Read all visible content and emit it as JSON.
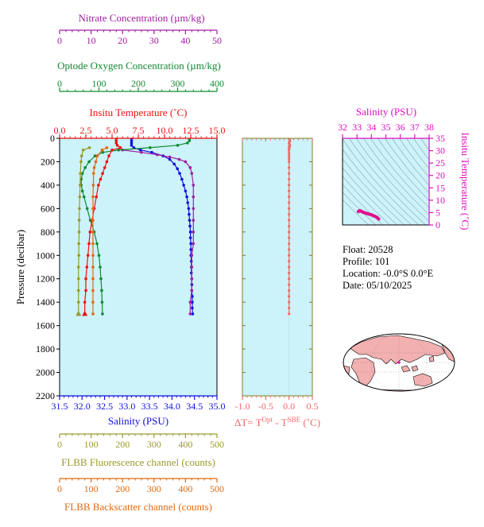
{
  "colors": {
    "nitrate": "#a020a0",
    "oxygen": "#108a30",
    "temperature": "#ee1010",
    "salinity": "#1010dd",
    "fluorescence": "#9a9a2a",
    "backscatter": "#e06a10",
    "dt": "#f06a6a",
    "ts_axis": "#e010c0",
    "plot_bg": "#ccf2fa",
    "map_land": "#f2b0b0"
  },
  "info": {
    "float": "Float:  20528",
    "profile": "Profile:  101",
    "location": "Location:  -0.0°S   0.0°E",
    "date": "Date:  05/10/2025"
  },
  "chart_data": [
    {
      "type": "line",
      "name": "main-profile",
      "ylabel": "Pressure (decibar)",
      "ylim": [
        2200,
        0
      ],
      "yticks": [
        0,
        200,
        400,
        600,
        800,
        1000,
        1200,
        1400,
        1600,
        1800,
        2000,
        2200
      ],
      "axes": {
        "nitrate": {
          "label": "Nitrate Concentration (µm/kg)",
          "range": [
            0,
            50
          ],
          "ticks": [
            0,
            10,
            20,
            30,
            40,
            50
          ]
        },
        "oxygen": {
          "label": "Optode Oxygen Concentration (µm/kg)",
          "range": [
            0,
            400
          ],
          "ticks": [
            0,
            100,
            200,
            300,
            400
          ]
        },
        "temperature": {
          "label": "Insitu Temperature (˚C)",
          "range": [
            0,
            15
          ],
          "ticks": [
            "0.0",
            "2.5",
            "5.0",
            "7.5",
            "10.0",
            "12.5",
            "15.0"
          ]
        },
        "salinity": {
          "label": "Salinity (PSU)",
          "range": [
            31.5,
            35
          ],
          "ticks": [
            "31.5",
            "32.0",
            "32.5",
            "33.0",
            "33.5",
            "34.0",
            "34.5",
            "35.0"
          ]
        },
        "fluorescence": {
          "label": "FLBB Fluorescence channel (counts)",
          "range": [
            0,
            500
          ],
          "ticks": [
            0,
            100,
            200,
            300,
            400,
            500
          ]
        },
        "backscatter": {
          "label": "FLBB Backscatter channel (counts)",
          "range": [
            0,
            500
          ],
          "ticks": [
            0,
            100,
            200,
            300,
            400,
            500
          ]
        }
      },
      "series": [
        {
          "key": "salinity",
          "pressure": [
            0,
            20,
            40,
            60,
            80,
            100,
            120,
            150,
            180,
            220,
            260,
            300,
            350,
            400,
            450,
            500,
            550,
            600,
            650,
            700,
            750,
            800,
            850,
            900,
            950,
            1000,
            1050,
            1100,
            1150,
            1200,
            1250,
            1300,
            1350,
            1400,
            1450,
            1500
          ],
          "values": [
            33.1,
            33.1,
            33.1,
            33.1,
            33.15,
            33.3,
            33.55,
            33.8,
            33.95,
            34.05,
            34.12,
            34.17,
            34.22,
            34.26,
            34.3,
            34.33,
            34.35,
            34.37,
            34.38,
            34.39,
            34.4,
            34.41,
            34.41,
            34.42,
            34.42,
            34.42,
            34.43,
            34.43,
            34.43,
            34.44,
            34.44,
            34.44,
            34.45,
            34.45,
            34.45,
            34.46
          ]
        },
        {
          "key": "nitrate",
          "pressure": [
            100,
            120,
            140,
            160,
            180,
            200,
            250,
            300,
            400,
            500,
            600,
            700,
            800,
            900,
            1000,
            1100,
            1200,
            1300,
            1400,
            1500
          ],
          "values": [
            20,
            26,
            31,
            35,
            38,
            40,
            41.5,
            42,
            42.5,
            42.5,
            42.5,
            42.5,
            42.5,
            42.5,
            42,
            42,
            42,
            42,
            41.5,
            41.5
          ]
        },
        {
          "key": "oxygen",
          "pressure": [
            0,
            20,
            40,
            60,
            80,
            100,
            120,
            150,
            200,
            250,
            300,
            350,
            400,
            450,
            500,
            600,
            700,
            800,
            900,
            1000,
            1100,
            1200,
            1300,
            1400,
            1500
          ],
          "values": [
            330,
            330,
            325,
            300,
            230,
            150,
            110,
            90,
            75,
            65,
            58,
            55,
            55,
            58,
            62,
            70,
            78,
            88,
            95,
            100,
            103,
            105,
            107,
            108,
            109
          ]
        },
        {
          "key": "temperature",
          "pressure": [
            0,
            20,
            40,
            60,
            80,
            100,
            150,
            200,
            250,
            300,
            350,
            400,
            500,
            600,
            700,
            800,
            900,
            1000,
            1100,
            1200,
            1300,
            1400,
            1500
          ],
          "values": [
            5.4,
            5.4,
            5.4,
            5.5,
            5.8,
            5.0,
            4.7,
            4.5,
            4.3,
            4.1,
            3.9,
            3.7,
            3.5,
            3.3,
            3.1,
            2.9,
            2.8,
            2.7,
            2.6,
            2.5,
            2.5,
            2.4,
            2.4
          ]
        },
        {
          "key": "fluorescence",
          "pressure": [
            80,
            100,
            150,
            200,
            300,
            400,
            500,
            600,
            700,
            800,
            900,
            1000,
            1100,
            1200,
            1300,
            1400,
            1500
          ],
          "values": [
            95,
            75,
            70,
            68,
            66,
            65,
            64,
            63,
            62,
            62,
            61,
            61,
            60,
            60,
            60,
            60,
            60
          ]
        },
        {
          "key": "backscatter",
          "pressure": [
            80,
            100,
            150,
            200,
            250,
            300,
            400,
            500,
            600,
            700,
            800,
            900,
            1000,
            1100,
            1200,
            1300,
            1400,
            1500
          ],
          "values": [
            150,
            135,
            120,
            115,
            110,
            108,
            107,
            106,
            106,
            106,
            106,
            106,
            106,
            106,
            106,
            106,
            106,
            106
          ]
        }
      ]
    },
    {
      "type": "line",
      "name": "delta-t-profile",
      "xlabel": "ΔT= TOpt - TSBE (˚C)",
      "xlim": [
        -1.0,
        0.5
      ],
      "xticks": [
        "-1.0",
        "-0.5",
        "0.0",
        "0.5"
      ],
      "ylim": [
        2200,
        0
      ],
      "pressure": [
        0,
        10,
        20,
        30,
        40,
        50,
        60,
        70,
        80,
        90,
        100,
        120,
        140,
        160,
        180,
        200,
        250,
        300,
        350,
        400,
        450,
        500,
        550,
        600,
        650,
        700,
        750,
        800,
        850,
        900,
        950,
        1000,
        1050,
        1100,
        1150,
        1200,
        1250,
        1300,
        1350,
        1400,
        1450,
        1500
      ],
      "values": [
        0,
        0.01,
        0.02,
        0.01,
        0,
        0.01,
        0.02,
        0,
        0.01,
        0,
        0,
        0,
        0,
        0,
        0,
        0,
        0,
        0,
        0,
        0,
        0,
        0,
        0,
        0,
        0,
        0,
        0,
        0,
        0,
        0,
        0,
        0,
        0,
        0,
        0,
        0,
        0,
        0,
        0,
        0,
        0,
        0
      ]
    },
    {
      "type": "scatter",
      "name": "ts-diagram",
      "xlabel": "Salinity (PSU)",
      "ylabel": "Insitu Temperature (˚C)",
      "xlim": [
        32,
        38
      ],
      "ylim": [
        0,
        35
      ],
      "xticks": [
        32,
        33,
        34,
        35,
        36,
        37,
        38
      ],
      "yticks": [
        0,
        5,
        10,
        15,
        20,
        25,
        30,
        35
      ],
      "salinity": [
        33.1,
        33.2,
        33.4,
        33.7,
        34.0,
        34.2,
        34.4,
        34.5
      ],
      "temperature": [
        5.4,
        5.8,
        5.2,
        4.6,
        4.1,
        3.6,
        3.0,
        2.4
      ]
    }
  ]
}
